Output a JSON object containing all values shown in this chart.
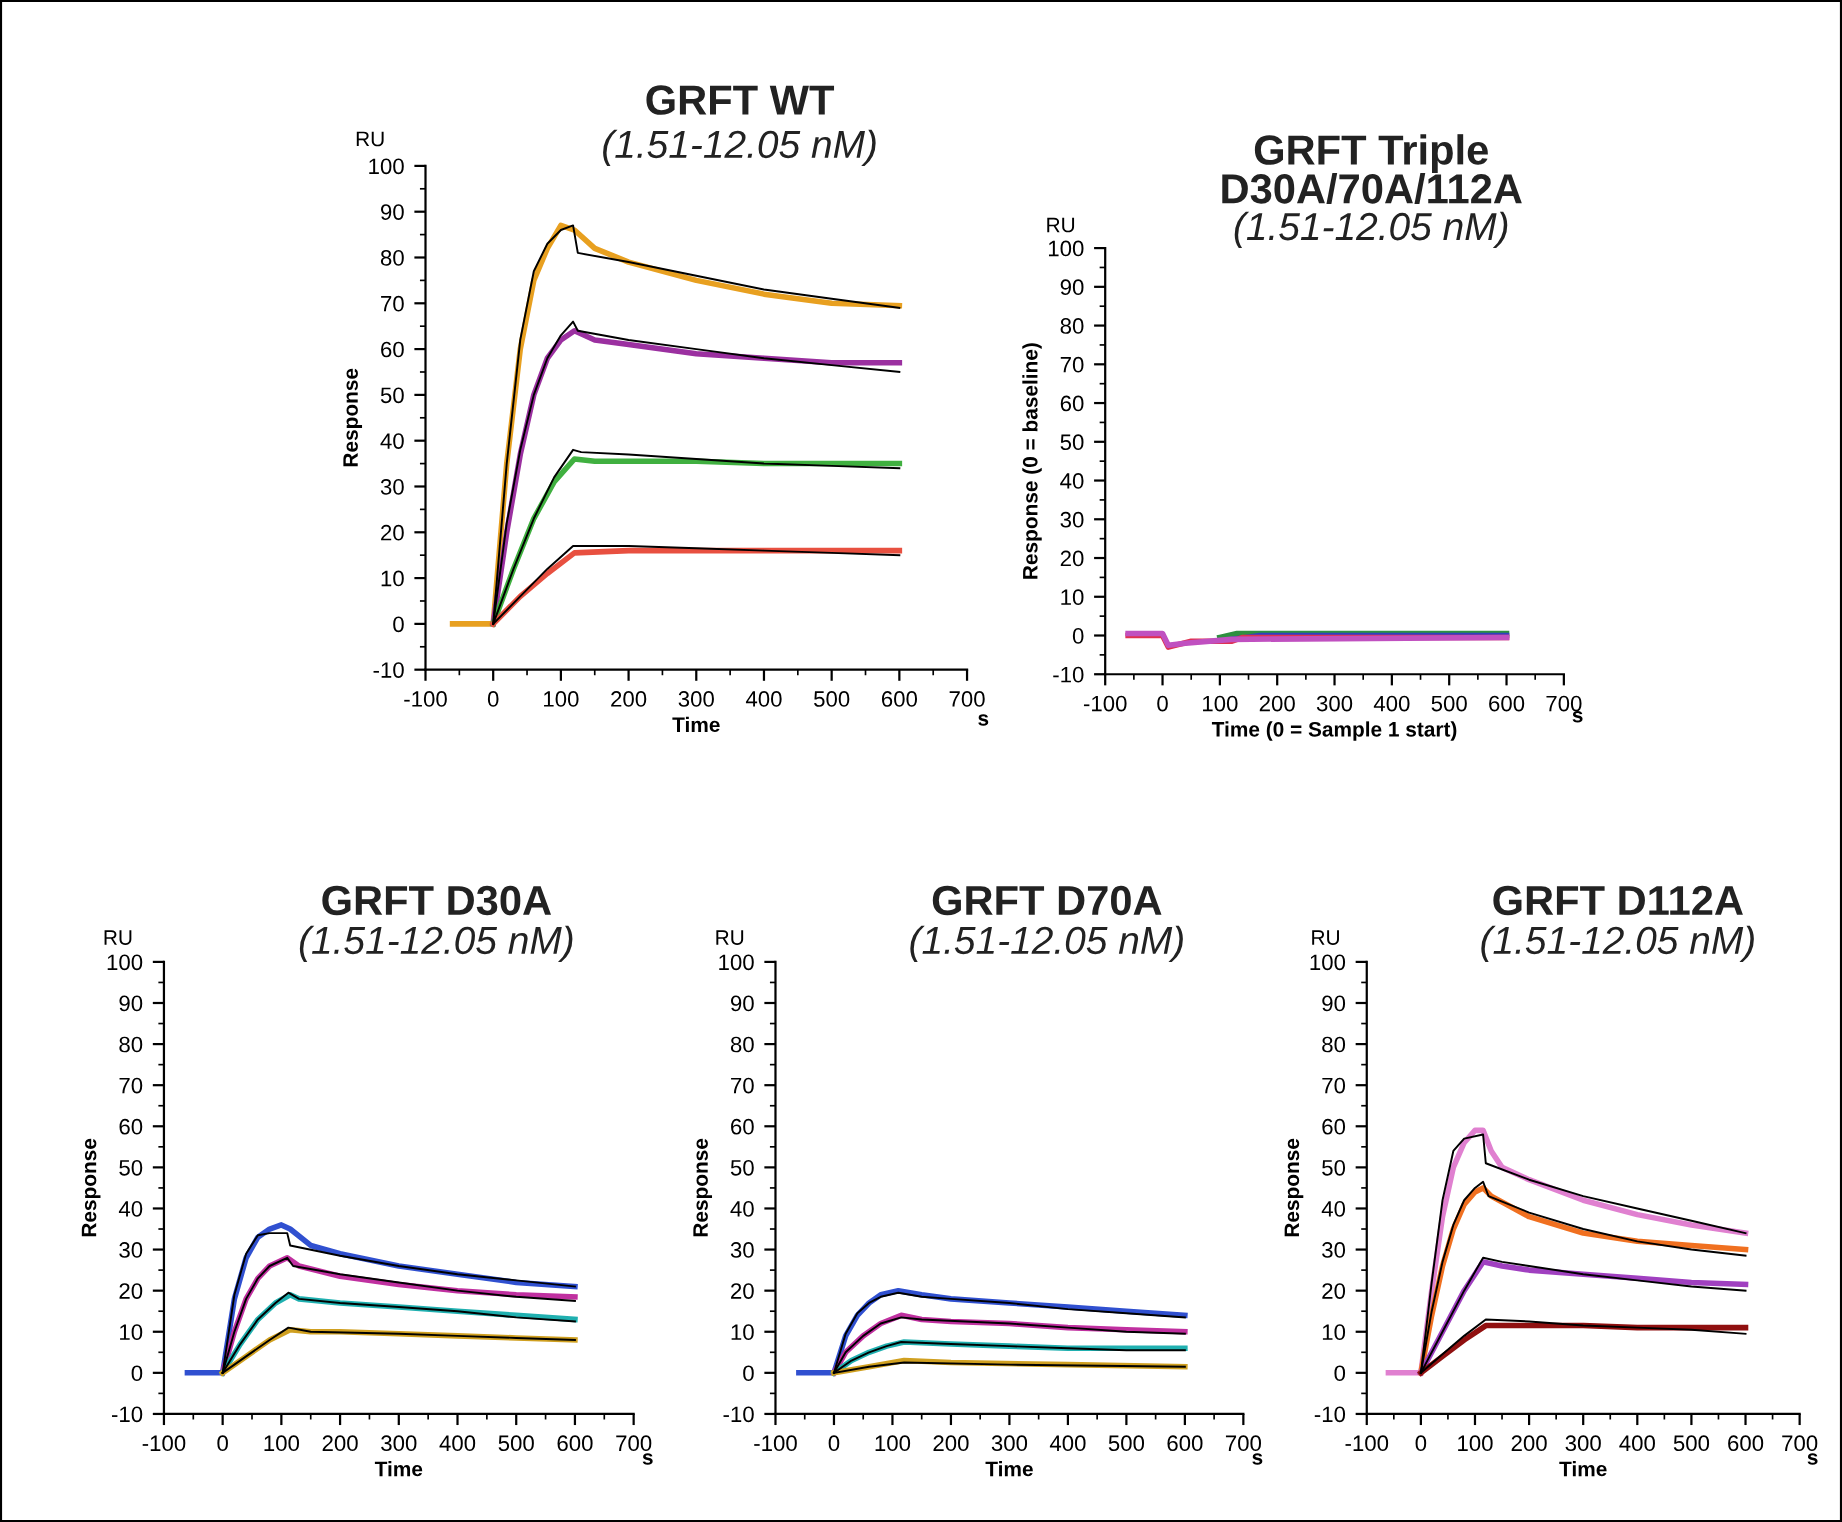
{
  "chart_data": [
    {
      "type": "line",
      "title": "GRFT WT",
      "subtitle": "(1.51-12.05 nM)",
      "xlabel": "Time",
      "ylabel": "Response",
      "annotations": [
        "RU",
        "s"
      ],
      "xlim": [
        -100,
        700
      ],
      "ylim": [
        -10,
        100
      ],
      "xticks": [
        -100,
        0,
        100,
        200,
        300,
        400,
        500,
        600,
        700
      ],
      "yticks": [
        -10,
        0,
        10,
        20,
        30,
        40,
        50,
        60,
        70,
        80,
        90,
        100
      ],
      "grid": false,
      "marker": "none",
      "line_style": "solid",
      "series": [
        {
          "color": "#e8a020",
          "x": [
            -60,
            0,
            20,
            40,
            60,
            80,
            100,
            120,
            150,
            200,
            300,
            400,
            500,
            600
          ],
          "values": [
            0,
            0,
            35,
            60,
            75,
            82,
            87,
            86,
            82,
            79,
            75,
            72,
            70,
            69.5
          ]
        },
        {
          "color": "#000000",
          "x": [
            0,
            20,
            40,
            60,
            80,
            100,
            118,
            125,
            200,
            300,
            400,
            500,
            600
          ],
          "values": [
            0,
            35,
            62,
            77,
            83,
            86,
            87,
            81,
            79,
            76,
            73,
            71,
            69
          ]
        },
        {
          "color": "#9b30a0",
          "x": [
            0,
            20,
            40,
            60,
            80,
            100,
            120,
            150,
            200,
            300,
            400,
            500,
            600
          ],
          "values": [
            0,
            20,
            37,
            50,
            58,
            62,
            64,
            62,
            61,
            59,
            58,
            57,
            57
          ]
        },
        {
          "color": "#000000",
          "x": [
            0,
            20,
            40,
            60,
            80,
            100,
            118,
            125,
            200,
            300,
            400,
            500,
            600
          ],
          "values": [
            0,
            22,
            38,
            50,
            58,
            63,
            66,
            64,
            62,
            60,
            58,
            56.5,
            55
          ]
        },
        {
          "color": "#40b040",
          "x": [
            0,
            30,
            60,
            90,
            120,
            150,
            200,
            300,
            400,
            500,
            600
          ],
          "values": [
            0,
            12,
            23,
            31,
            36,
            35.5,
            35.5,
            35.5,
            35,
            35,
            35
          ]
        },
        {
          "color": "#000000",
          "x": [
            0,
            30,
            60,
            90,
            118,
            130,
            200,
            300,
            400,
            500,
            600
          ],
          "values": [
            0,
            12,
            23,
            32,
            38,
            37.5,
            37,
            36,
            35,
            34.5,
            34
          ]
        },
        {
          "color": "#e85040",
          "x": [
            0,
            40,
            80,
            120,
            200,
            300,
            400,
            500,
            600
          ],
          "values": [
            0,
            6,
            11,
            15.5,
            16,
            16,
            16,
            16,
            16
          ]
        },
        {
          "color": "#000000",
          "x": [
            0,
            40,
            80,
            118,
            200,
            300,
            400,
            500,
            600
          ],
          "values": [
            0,
            6,
            12,
            17,
            17,
            16.5,
            16,
            15.5,
            15
          ]
        }
      ]
    },
    {
      "type": "line",
      "title": "GRFT Triple\nD30A/70A/112A",
      "subtitle": "(1.51-12.05 nM)",
      "xlabel": "Time (0 = Sample 1 start)",
      "ylabel": "Response (0 = baseline)",
      "annotations": [
        "RU",
        "s"
      ],
      "xlim": [
        -100,
        700
      ],
      "ylim": [
        -10,
        100
      ],
      "xticks": [
        -100,
        0,
        100,
        200,
        300,
        400,
        500,
        600,
        700
      ],
      "yticks": [
        -10,
        0,
        10,
        20,
        30,
        40,
        50,
        60,
        70,
        80,
        90,
        100
      ],
      "grid": false,
      "marker": "none",
      "line_style": "solid",
      "series": [
        {
          "color": "#2e9040",
          "x": [
            100,
            130,
            600
          ],
          "values": [
            -0.5,
            0.5,
            0.5
          ]
        },
        {
          "color": "#3040c0",
          "x": [
            120,
            170,
            600
          ],
          "values": [
            -1,
            0,
            0
          ]
        },
        {
          "color": "#e03050",
          "x": [
            -60,
            0,
            10,
            50,
            120,
            140,
            600
          ],
          "values": [
            0,
            0,
            -3,
            -1.5,
            -1.5,
            -0.5,
            -0.5
          ]
        },
        {
          "color": "#c050c0",
          "x": [
            -60,
            0,
            10,
            40,
            120,
            600
          ],
          "values": [
            0.5,
            0.5,
            -2.5,
            -2,
            -1,
            -0.5
          ]
        }
      ]
    },
    {
      "type": "line",
      "title": "GRFT D30A",
      "subtitle": "(1.51-12.05 nM)",
      "xlabel": "Time",
      "ylabel": "Response",
      "annotations": [
        "RU",
        "s"
      ],
      "xlim": [
        -100,
        700
      ],
      "ylim": [
        -10,
        100
      ],
      "xticks": [
        -100,
        0,
        100,
        200,
        300,
        400,
        500,
        600,
        700
      ],
      "yticks": [
        -10,
        0,
        10,
        20,
        30,
        40,
        50,
        60,
        70,
        80,
        90,
        100
      ],
      "grid": false,
      "marker": "none",
      "line_style": "solid",
      "series": [
        {
          "color": "#3050d0",
          "x": [
            -60,
            0,
            20,
            40,
            60,
            80,
            100,
            115,
            150,
            200,
            300,
            400,
            500,
            600
          ],
          "values": [
            0,
            0,
            18,
            28,
            33,
            35,
            36,
            35,
            31,
            29,
            26,
            24,
            22,
            21
          ]
        },
        {
          "color": "#000000",
          "x": [
            0,
            20,
            40,
            60,
            80,
            110,
            115,
            200,
            300,
            400,
            500,
            600
          ],
          "values": [
            0,
            19,
            29,
            33.5,
            34,
            34,
            31,
            28.5,
            26,
            24,
            22.5,
            21
          ]
        },
        {
          "color": "#c030a0",
          "x": [
            0,
            20,
            40,
            60,
            80,
            110,
            130,
            200,
            300,
            400,
            500,
            600
          ],
          "values": [
            0,
            10,
            18,
            23,
            26,
            28,
            26,
            23.5,
            21.5,
            20,
            19,
            18.5
          ]
        },
        {
          "color": "#000000",
          "x": [
            0,
            20,
            40,
            60,
            80,
            110,
            120,
            200,
            300,
            400,
            500,
            600
          ],
          "values": [
            0,
            10,
            18,
            23,
            26,
            28,
            26,
            24,
            22,
            20,
            18.5,
            17.5
          ]
        },
        {
          "color": "#20b0b0",
          "x": [
            0,
            30,
            60,
            90,
            115,
            130,
            200,
            300,
            400,
            500,
            600
          ],
          "values": [
            0,
            7,
            13,
            17,
            19,
            18,
            17,
            16,
            15,
            14,
            13
          ]
        },
        {
          "color": "#000000",
          "x": [
            0,
            30,
            60,
            90,
            112,
            130,
            200,
            300,
            400,
            500,
            600
          ],
          "values": [
            0,
            7,
            13,
            17,
            19.5,
            18,
            17,
            16,
            15,
            13.5,
            12.5
          ]
        },
        {
          "color": "#d0a020",
          "x": [
            0,
            40,
            80,
            115,
            150,
            200,
            300,
            400,
            500,
            600
          ],
          "values": [
            0,
            4,
            8,
            10.5,
            10,
            10,
            9.5,
            9,
            8.5,
            8
          ]
        },
        {
          "color": "#000000",
          "x": [
            0,
            40,
            80,
            112,
            150,
            300,
            400,
            500,
            600
          ],
          "values": [
            0,
            4,
            8,
            11,
            10,
            9.5,
            9,
            8.5,
            8
          ]
        }
      ]
    },
    {
      "type": "line",
      "title": "GRFT D70A",
      "subtitle": "(1.51-12.05 nM)",
      "xlabel": "Time",
      "ylabel": "Response",
      "annotations": [
        "RU",
        "s"
      ],
      "xlim": [
        -100,
        700
      ],
      "ylim": [
        -10,
        100
      ],
      "xticks": [
        -100,
        0,
        100,
        200,
        300,
        400,
        500,
        600,
        700
      ],
      "yticks": [
        -10,
        0,
        10,
        20,
        30,
        40,
        50,
        60,
        70,
        80,
        90,
        100
      ],
      "grid": false,
      "marker": "none",
      "line_style": "solid",
      "series": [
        {
          "color": "#3050d0",
          "x": [
            -60,
            0,
            20,
            40,
            60,
            80,
            110,
            150,
            200,
            300,
            400,
            500,
            600
          ],
          "values": [
            0,
            0,
            9,
            14,
            17,
            19,
            20,
            19,
            18,
            17,
            16,
            15,
            14
          ]
        },
        {
          "color": "#000000",
          "x": [
            0,
            20,
            40,
            60,
            80,
            110,
            150,
            200,
            300,
            400,
            500,
            600
          ],
          "values": [
            0,
            9.5,
            14.5,
            17,
            18.5,
            19.5,
            18.5,
            18,
            17,
            15.5,
            14.5,
            13.5
          ]
        },
        {
          "color": "#c030a0",
          "x": [
            0,
            20,
            50,
            80,
            115,
            150,
            200,
            300,
            400,
            500,
            600
          ],
          "values": [
            0,
            5,
            9,
            12,
            14,
            13,
            12.5,
            12,
            11,
            10.5,
            10
          ]
        },
        {
          "color": "#000000",
          "x": [
            0,
            20,
            50,
            80,
            115,
            150,
            300,
            400,
            500,
            600
          ],
          "values": [
            0,
            5,
            9,
            12,
            13.5,
            13,
            12,
            11,
            10,
            9.5
          ]
        },
        {
          "color": "#20b0b0",
          "x": [
            0,
            30,
            60,
            90,
            120,
            200,
            300,
            400,
            500,
            600
          ],
          "values": [
            0,
            3,
            5,
            6.5,
            7.5,
            7,
            6.5,
            6,
            6,
            6
          ]
        },
        {
          "color": "#000000",
          "x": [
            0,
            30,
            60,
            90,
            115,
            200,
            300,
            400,
            500,
            600
          ],
          "values": [
            0,
            3,
            5,
            6.5,
            7.5,
            7,
            6.5,
            6,
            5.5,
            5.5
          ]
        },
        {
          "color": "#d0a020",
          "x": [
            0,
            60,
            120,
            200,
            400,
            600
          ],
          "values": [
            0,
            1.5,
            3,
            2.5,
            2,
            1.5
          ]
        },
        {
          "color": "#000000",
          "x": [
            0,
            60,
            120,
            300,
            600
          ],
          "values": [
            0,
            1.5,
            2.5,
            2,
            1.5
          ]
        }
      ]
    },
    {
      "type": "line",
      "title": "GRFT D112A",
      "subtitle": "(1.51-12.05 nM)",
      "xlabel": "Time",
      "ylabel": "Response",
      "annotations": [
        "RU",
        "s"
      ],
      "xlim": [
        -100,
        700
      ],
      "ylim": [
        -10,
        100
      ],
      "xticks": [
        -100,
        0,
        100,
        200,
        300,
        400,
        500,
        600,
        700
      ],
      "yticks": [
        -10,
        0,
        10,
        20,
        30,
        40,
        50,
        60,
        70,
        80,
        90,
        100
      ],
      "grid": false,
      "marker": "none",
      "line_style": "solid",
      "series": [
        {
          "color": "#e080d0",
          "x": [
            -60,
            0,
            20,
            40,
            60,
            80,
            100,
            115,
            130,
            150,
            200,
            300,
            400,
            500,
            600
          ],
          "values": [
            0,
            0,
            20,
            38,
            50,
            56,
            59,
            59,
            54,
            50,
            47,
            42,
            38.5,
            36,
            34
          ]
        },
        {
          "color": "#000000",
          "x": [
            0,
            20,
            40,
            60,
            80,
            115,
            120,
            200,
            300,
            400,
            500,
            600
          ],
          "values": [
            0,
            22,
            42,
            54,
            57,
            58,
            51,
            47,
            43,
            40,
            37,
            34
          ]
        },
        {
          "color": "#f07020",
          "x": [
            0,
            20,
            40,
            60,
            80,
            100,
            115,
            130,
            200,
            300,
            400,
            500,
            600
          ],
          "values": [
            0,
            14,
            26,
            35,
            41,
            44,
            45,
            43,
            38,
            34,
            32,
            31,
            30
          ]
        },
        {
          "color": "#000000",
          "x": [
            0,
            20,
            40,
            60,
            80,
            100,
            115,
            125,
            200,
            300,
            400,
            500,
            600
          ],
          "values": [
            0,
            15,
            27,
            36,
            42,
            45,
            46.5,
            43,
            39,
            35,
            32,
            30,
            28.5
          ]
        },
        {
          "color": "#a040c0",
          "x": [
            0,
            40,
            80,
            115,
            150,
            200,
            300,
            400,
            500,
            600
          ],
          "values": [
            0,
            10,
            20,
            27,
            26,
            25,
            24,
            23,
            22,
            21.5
          ]
        },
        {
          "color": "#000000",
          "x": [
            0,
            40,
            80,
            115,
            150,
            200,
            300,
            400,
            500,
            600
          ],
          "values": [
            0,
            10,
            20,
            28,
            27,
            26,
            24,
            22.5,
            21,
            20
          ]
        },
        {
          "color": "#901010",
          "x": [
            0,
            40,
            80,
            120,
            200,
            300,
            400,
            500,
            600
          ],
          "values": [
            0,
            4,
            8,
            11.5,
            11.5,
            11.5,
            11,
            11,
            11
          ]
        },
        {
          "color": "#000000",
          "x": [
            0,
            40,
            80,
            120,
            200,
            300,
            400,
            500,
            600
          ],
          "values": [
            0,
            4.5,
            9,
            13,
            12.5,
            11.5,
            11,
            10.5,
            9.5
          ]
        }
      ]
    }
  ]
}
